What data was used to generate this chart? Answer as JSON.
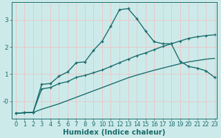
{
  "xlabel": "Humidex (Indice chaleur)",
  "background_color": "#cdeaea",
  "grid_color": "#e8c8c8",
  "line_color": "#1a6b6b",
  "xlim": [
    -0.5,
    23.3
  ],
  "ylim": [
    -0.65,
    3.65
  ],
  "x": [
    0,
    1,
    2,
    3,
    4,
    5,
    6,
    7,
    8,
    9,
    10,
    11,
    12,
    13,
    14,
    15,
    16,
    17,
    18,
    19,
    20,
    21,
    22,
    23
  ],
  "y_main": [
    -0.45,
    -0.43,
    -0.42,
    0.62,
    0.65,
    0.92,
    1.08,
    1.42,
    1.45,
    1.88,
    2.22,
    2.78,
    3.38,
    3.42,
    3.05,
    2.6,
    2.2,
    2.12,
    2.12,
    1.48,
    1.28,
    1.22,
    1.12,
    0.88
  ],
  "y_curve2": [
    -0.45,
    -0.43,
    -0.42,
    0.45,
    0.5,
    0.65,
    0.72,
    0.88,
    0.95,
    1.05,
    1.15,
    1.28,
    1.42,
    1.55,
    1.68,
    1.78,
    1.9,
    2.02,
    2.12,
    2.22,
    2.32,
    2.38,
    2.42,
    2.45
  ],
  "y_curve3": [
    -0.45,
    -0.43,
    -0.42,
    -0.3,
    -0.2,
    -0.1,
    0.02,
    0.14,
    0.26,
    0.38,
    0.5,
    0.62,
    0.74,
    0.86,
    0.96,
    1.05,
    1.14,
    1.22,
    1.3,
    1.38,
    1.45,
    1.5,
    1.55,
    1.58
  ],
  "yticks": [
    0,
    1,
    2,
    3
  ],
  "ytick_labels": [
    "-0",
    "1",
    "2",
    "3"
  ],
  "xtick_labels": [
    "0",
    "1",
    "2",
    "3",
    "4",
    "5",
    "6",
    "7",
    "8",
    "9",
    "10",
    "11",
    "12",
    "13",
    "14",
    "15",
    "16",
    "17",
    "18",
    "19",
    "20",
    "21",
    "22",
    "23"
  ],
  "fontsize_xlabel": 7.5,
  "fontsize_ticks": 6.5,
  "linewidth": 1.0,
  "markersize": 3.5
}
